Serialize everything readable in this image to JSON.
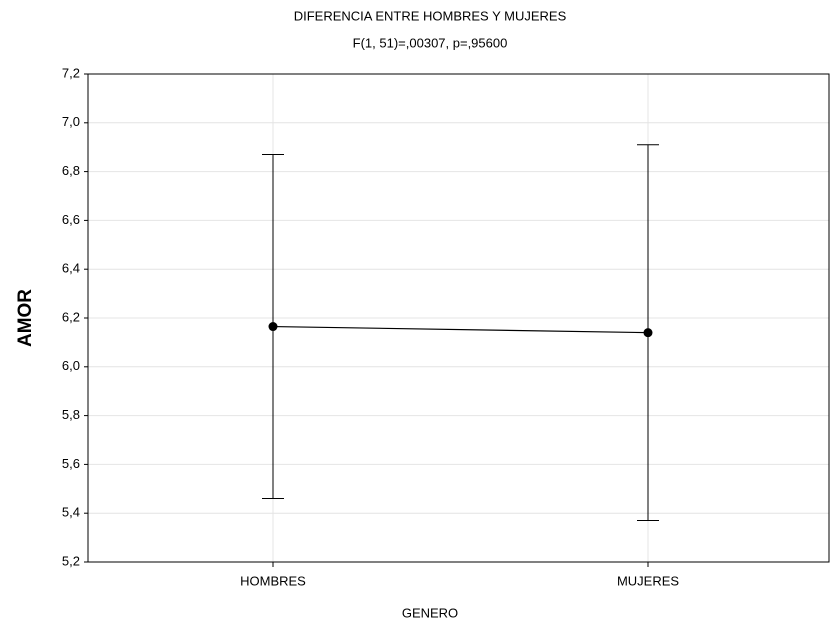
{
  "chart_data": {
    "type": "line",
    "title": "DIFERENCIA ENTRE HOMBRES Y MUJERES",
    "subtitle": "F(1, 51)=,00307, p=,95600",
    "x_label": "GENERO",
    "y_label": "AMOR",
    "categories": [
      "HOMBRES",
      "MUJERES"
    ],
    "series": [
      {
        "name": "AMOR",
        "color": "#000000",
        "values": [
          6.165,
          6.14
        ],
        "errors": [
          0.705,
          0.77
        ]
      }
    ],
    "ylim": [
      5.2,
      7.2
    ],
    "yticks": [
      {
        "value": 5.2,
        "label": "5,2"
      },
      {
        "value": 5.4,
        "label": "5,4"
      },
      {
        "value": 5.6,
        "label": "5,6"
      },
      {
        "value": 5.8,
        "label": "5,8"
      },
      {
        "value": 6.0,
        "label": "6,0"
      },
      {
        "value": 6.2,
        "label": "6,2"
      },
      {
        "value": 6.4,
        "label": "6,4"
      },
      {
        "value": 6.6,
        "label": "6,6"
      },
      {
        "value": 6.8,
        "label": "6,8"
      },
      {
        "value": 7.0,
        "label": "7,0"
      },
      {
        "value": 7.2,
        "label": "7,2"
      }
    ],
    "grid": true
  }
}
